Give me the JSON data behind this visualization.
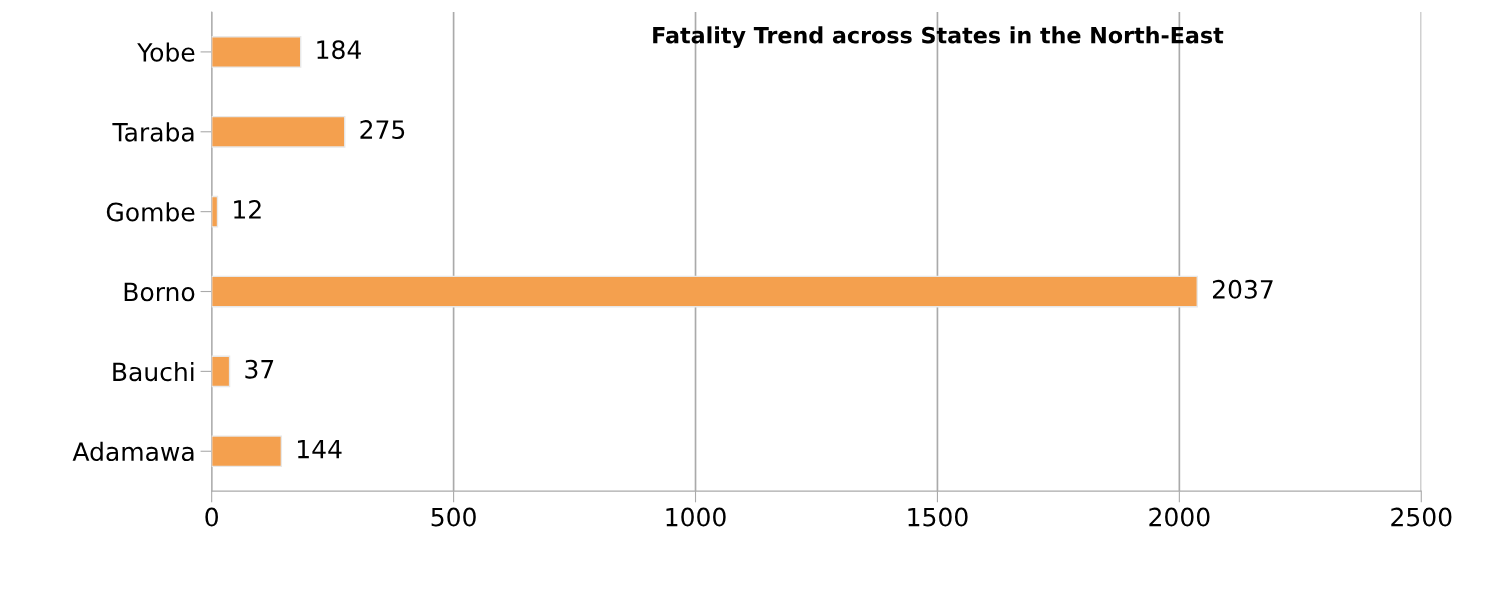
{
  "chart_data": {
    "type": "bar",
    "orientation": "horizontal",
    "title": "Fatality Trend across States in the North-East",
    "categories": [
      "Yobe",
      "Taraba",
      "Gombe",
      "Borno",
      "Bauchi",
      "Adamawa"
    ],
    "values": [
      184,
      275,
      12,
      2037,
      37,
      144
    ],
    "color": "#f4a04e",
    "xlim": [
      0,
      2500
    ],
    "xticks": [
      0,
      500,
      1000,
      1500,
      2000,
      2500
    ],
    "grid": "x",
    "data_labels": true
  }
}
